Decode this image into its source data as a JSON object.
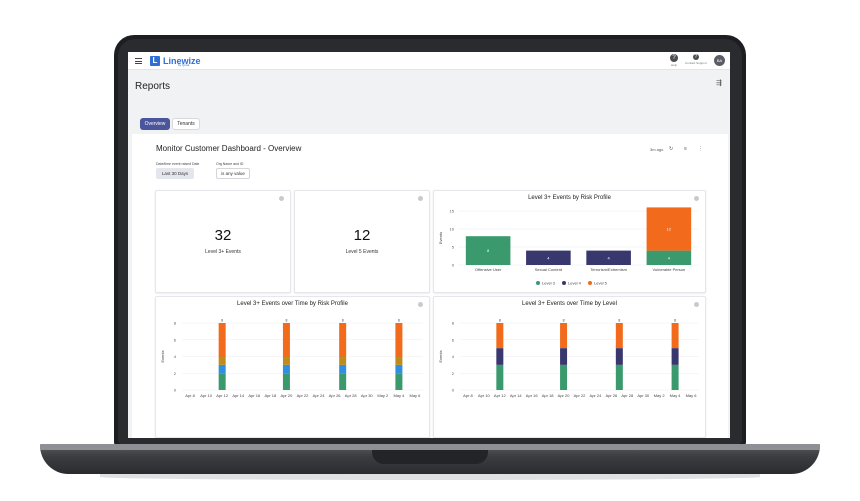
{
  "header": {
    "brand": "Linewize",
    "brand_sub": "by Qoria",
    "help_label": "Help",
    "contact_label": "Contact Support",
    "avatar_initials": "BA"
  },
  "page": {
    "title": "Reports"
  },
  "tabs": [
    {
      "label": "Overview",
      "active": true
    },
    {
      "label": "Tenants",
      "active": false
    }
  ],
  "dashboard": {
    "title": "Monitor Customer Dashboard - Overview",
    "updated": "3m ago",
    "filters": [
      {
        "label": "Date/time event raised Date",
        "value": "Last 30 Days"
      },
      {
        "label": "Org Name and ID",
        "value": "is any value"
      }
    ]
  },
  "kpis": [
    {
      "value": "32",
      "label": "Level 3+ Events"
    },
    {
      "value": "12",
      "label": "Level 5 Events"
    }
  ],
  "colors": {
    "level3": "#3a9a6e",
    "level4": "#38386e",
    "level5": "#f26a1b",
    "accent": "#4a559c",
    "amber": "#bf8a1e",
    "blue": "#2f8fe0"
  },
  "chart_data": [
    {
      "type": "bar",
      "title": "Level 3+ Events by Risk Profile",
      "ylabel": "Events",
      "ylim": [
        0,
        15
      ],
      "yticks": [
        0,
        5,
        10,
        15
      ],
      "categories": [
        "Offensive User",
        "Sexual Content",
        "Terrorism/Extremism",
        "Vulnerable Person"
      ],
      "series": [
        {
          "name": "Level 3",
          "values": [
            8,
            null,
            null,
            4
          ]
        },
        {
          "name": "Level 4",
          "values": [
            null,
            4,
            4,
            null
          ]
        },
        {
          "name": "Level 5",
          "values": [
            null,
            null,
            null,
            12
          ]
        }
      ],
      "legend": "bottom"
    },
    {
      "type": "bar",
      "title": "Level 3+ Events over Time by Risk Profile",
      "ylabel": "Events",
      "ylim": [
        0,
        8
      ],
      "yticks": [
        0,
        2,
        4,
        6,
        8
      ],
      "categories": [
        "Apr 8",
        "Apr 10",
        "Apr 12",
        "Apr 14",
        "Apr 16",
        "Apr 18",
        "Apr 20",
        "Apr 22",
        "Apr 24",
        "Apr 26",
        "Apr 28",
        "Apr 30",
        "May 2",
        "May 4",
        "May 6"
      ],
      "bars": [
        {
          "at": "Apr 12",
          "total": "8",
          "segments": [
            2,
            1,
            1,
            4
          ]
        },
        {
          "at": "Apr 20",
          "total": "8",
          "segments": [
            2,
            1,
            1,
            4
          ]
        },
        {
          "at": "Apr 27",
          "total": "8",
          "segments": [
            2,
            1,
            1,
            4
          ]
        },
        {
          "at": "May 4",
          "total": "8",
          "segments": [
            2,
            1,
            1,
            4
          ]
        }
      ]
    },
    {
      "type": "bar",
      "title": "Level 3+ Events over Time by Level",
      "ylabel": "Events",
      "ylim": [
        0,
        8
      ],
      "yticks": [
        0,
        2,
        4,
        6,
        8
      ],
      "categories": [
        "Apr 8",
        "Apr 10",
        "Apr 12",
        "Apr 14",
        "Apr 16",
        "Apr 18",
        "Apr 20",
        "Apr 22",
        "Apr 24",
        "Apr 26",
        "Apr 28",
        "Apr 30",
        "May 2",
        "May 4",
        "May 6"
      ],
      "bars": [
        {
          "at": "Apr 12",
          "total": "8",
          "segments": [
            3,
            2,
            3
          ]
        },
        {
          "at": "Apr 20",
          "total": "8",
          "segments": [
            3,
            2,
            3
          ]
        },
        {
          "at": "Apr 27",
          "total": "8",
          "segments": [
            3,
            2,
            3
          ]
        },
        {
          "at": "May 4",
          "total": "8",
          "segments": [
            3,
            2,
            3
          ]
        }
      ]
    }
  ]
}
